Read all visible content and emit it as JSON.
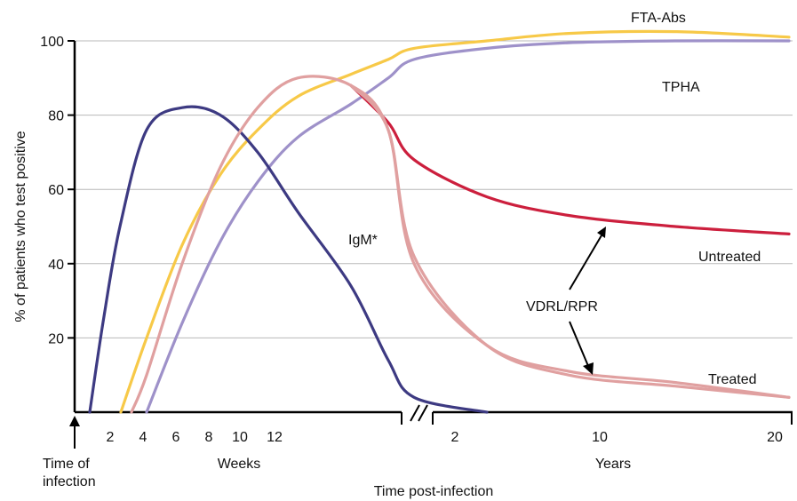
{
  "chart_data": {
    "type": "line",
    "ylabel": "% of patients who test positive",
    "xlabel": "Time post-infection",
    "ylim": [
      0,
      100
    ],
    "yticks": [
      20,
      40,
      60,
      80,
      100
    ],
    "grid": true,
    "origin_label": [
      "Time of",
      "infection"
    ],
    "x_segments": [
      {
        "unit_label": "Weeks",
        "ticks": [
          "2",
          "4",
          "6",
          "8",
          "10",
          "12"
        ]
      },
      {
        "unit_label": "Years",
        "ticks": [
          "2",
          "10",
          "20"
        ]
      }
    ],
    "series": [
      {
        "name": "FTA-Abs",
        "color": "#f7c948",
        "x": [
          0,
          2,
          4,
          6,
          8,
          10,
          12,
          14,
          16,
          18,
          20,
          22,
          24,
          26
        ],
        "values": [
          0,
          0,
          20,
          45,
          64,
          76,
          85,
          91,
          95,
          98,
          100,
          102,
          102.5,
          101
        ]
      },
      {
        "name": "TPHA",
        "color": "#9e91c9",
        "x": [
          0,
          2,
          4,
          6,
          8,
          10,
          12,
          14,
          16,
          18,
          20,
          22,
          24,
          26
        ],
        "values": [
          0,
          0,
          0,
          24,
          46,
          62,
          74,
          83,
          90,
          95,
          98,
          99.5,
          100,
          100
        ]
      },
      {
        "name": "IgM*",
        "color": "#3d3a82",
        "x": [
          0,
          1,
          2,
          4,
          6,
          8,
          10,
          12,
          14,
          16,
          18,
          20
        ],
        "values": [
          0,
          25,
          50,
          76,
          82,
          80,
          70,
          54,
          34,
          14,
          4,
          0
        ]
      },
      {
        "name": "VDRL/RPR",
        "color": "#e0a0a0",
        "x": [
          0,
          2,
          4,
          6,
          8,
          10,
          12,
          14,
          16,
          18,
          20,
          22,
          24,
          26
        ],
        "values": [
          0,
          0,
          10,
          40,
          66,
          82,
          90,
          88,
          76,
          40,
          18,
          11,
          8,
          4
        ]
      },
      {
        "name": "Untreated",
        "color": "#cc1f3d",
        "x": [
          14,
          16,
          18,
          20,
          22,
          24,
          26
        ],
        "values": [
          88,
          78,
          68,
          58,
          53,
          50,
          48
        ]
      },
      {
        "name": "Treated",
        "color": "#e0a0a0",
        "x": [
          14,
          16,
          18,
          20,
          22,
          24,
          26
        ],
        "values": [
          88,
          76,
          42,
          18,
          10,
          7,
          4
        ]
      }
    ],
    "annotations": [
      "FTA-Abs",
      "TPHA",
      "IgM*",
      "Untreated",
      "VDRL/RPR",
      "Treated"
    ]
  }
}
